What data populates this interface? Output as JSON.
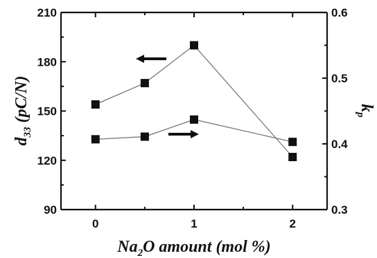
{
  "chart_data": {
    "type": "line",
    "x_ticks": [
      "0",
      "1",
      "2"
    ],
    "xlim": [
      -0.35,
      2.35
    ],
    "xlabel": {
      "pre": "Na",
      "sub": "2",
      "post": "O amount (mol %)"
    },
    "left_axis": {
      "label_main": "d",
      "label_sub": "33",
      "label_post": " (pC/N)",
      "ylim": [
        90,
        210
      ],
      "ticks": [
        "90",
        "120",
        "150",
        "180",
        "210"
      ],
      "tick_values": [
        90,
        120,
        150,
        180,
        210
      ]
    },
    "right_axis": {
      "label_main": "k",
      "label_sub": "p",
      "ylim": [
        0.3,
        0.6
      ],
      "ticks": [
        "0.3",
        "0.4",
        "0.5",
        "0.6"
      ],
      "tick_values": [
        0.3,
        0.4,
        0.5,
        0.6
      ]
    },
    "series": [
      {
        "axis": "left",
        "x": [
          0,
          0.5,
          1,
          2
        ],
        "y": [
          154,
          167,
          190,
          122
        ],
        "arrow": "left"
      },
      {
        "axis": "right",
        "x": [
          0,
          0.5,
          1,
          2
        ],
        "y": [
          0.407,
          0.411,
          0.437,
          0.403
        ],
        "arrow": "right"
      }
    ]
  }
}
